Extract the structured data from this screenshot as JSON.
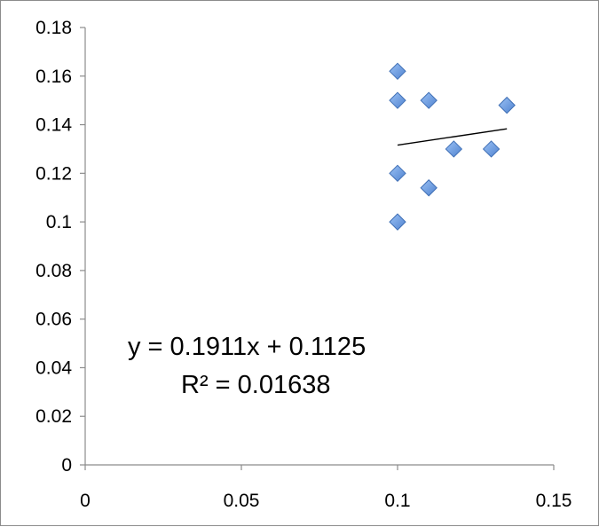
{
  "chart_data": {
    "type": "scatter",
    "x": [
      0.1,
      0.1,
      0.11,
      0.135,
      0.118,
      0.13,
      0.1,
      0.11,
      0.1
    ],
    "y": [
      0.162,
      0.15,
      0.15,
      0.148,
      0.13,
      0.13,
      0.12,
      0.114,
      0.1
    ],
    "xlim": [
      0,
      0.15
    ],
    "ylim": [
      0,
      0.18
    ],
    "x_ticks": [
      "0",
      "0.05",
      "0.1",
      "0.15"
    ],
    "y_ticks": [
      "0",
      "0.02",
      "0.04",
      "0.06",
      "0.08",
      "0.1",
      "0.12",
      "0.14",
      "0.16",
      "0.18"
    ],
    "trendline": {
      "slope": 0.1911,
      "intercept": 0.1125,
      "x_range": [
        0.1,
        0.135
      ]
    },
    "annotations": [
      "y = 0.1911x + 0.1125",
      "R² = 0.01638"
    ],
    "grid": false,
    "legend": "none",
    "marker": "diamond",
    "marker_color": "#6a9de0",
    "marker_edge_color": "#3f6fb5"
  }
}
